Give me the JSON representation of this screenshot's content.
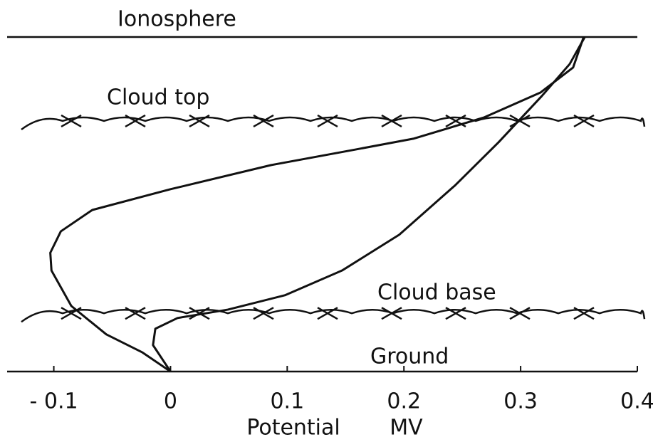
{
  "chart_data": {
    "type": "line",
    "x_label": "Potential MV",
    "xlim": [
      -0.14,
      0.4
    ],
    "xticks": [
      {
        "value": -0.1,
        "label": "- 0.1"
      },
      0,
      0.1,
      0.2,
      0.3,
      0.4
    ],
    "ylim": [
      0,
      1
    ],
    "levels": [
      {
        "label": "Ionosphere",
        "height": 1,
        "style": "line"
      },
      {
        "label": "Cloud top",
        "height": 0.749,
        "style": "cloud"
      },
      {
        "label": "Cloud base",
        "height": 0.174,
        "style": "cloud"
      },
      {
        "label": "Ground",
        "height": 0,
        "style": "line"
      }
    ],
    "series": [
      {
        "color": "#111111",
        "x": [
          0.0,
          -0.024,
          -0.055,
          -0.085,
          -0.102,
          -0.103,
          -0.094,
          -0.067,
          0.0,
          0.086,
          0.159,
          0.208,
          0.269,
          0.317,
          0.345,
          0.354
        ],
        "values": [
          0,
          0.057,
          0.111,
          0.196,
          0.302,
          0.355,
          0.419,
          0.483,
          0.545,
          0.617,
          0.664,
          0.696,
          0.76,
          0.834,
          0.909,
          1.0
        ]
      },
      {
        "color": "#111111",
        "x": [
          0.0,
          -0.015,
          -0.013,
          0.006,
          0.049,
          0.098,
          0.147,
          0.196,
          0.244,
          0.281,
          0.318,
          0.342,
          0.355
        ],
        "values": [
          0,
          0.079,
          0.128,
          0.16,
          0.185,
          0.228,
          0.302,
          0.409,
          0.557,
          0.685,
          0.823,
          0.919,
          1.0
        ]
      }
    ]
  }
}
